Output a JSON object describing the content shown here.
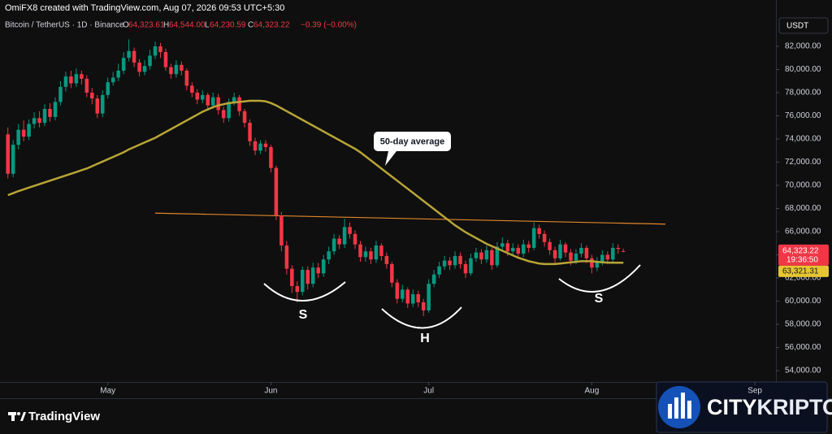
{
  "header": {
    "credit": "OmiFX8 created with TradingView.com, Aug 07, 2026 09:53 UTC+5:30",
    "symbol": "Bitcoin / TetherUS · 1D · Binance",
    "ohlc": [
      {
        "letter": "O",
        "value": "64,323.61"
      },
      {
        "letter": "H",
        "value": "64,544.00"
      },
      {
        "letter": "L",
        "value": "64,230.59"
      },
      {
        "letter": "C",
        "value": "64,323.22"
      }
    ],
    "change": "−0.39 (−0.00%)"
  },
  "logo": "TradingView",
  "badge": {
    "left": "CITY",
    "right": "KRIPTO"
  },
  "chart_data": {
    "type": "candlestick",
    "currency": "USDT",
    "up_color": "#089981",
    "down_color": "#f23645",
    "open": [
      74400,
      71000,
      73500,
      74800,
      74200,
      75300,
      75800,
      75400,
      76600,
      75900,
      77200,
      78500,
      79400,
      78800,
      79600,
      79200,
      78000,
      77500,
      76200,
      77800,
      78900,
      79300,
      79900,
      81000,
      81600,
      80600,
      79800,
      80300,
      81200,
      82000,
      81500,
      80200,
      79600,
      80400,
      79900,
      78600,
      78000,
      77400,
      77800,
      76900,
      77600,
      76500,
      75800,
      77200,
      77600,
      76400,
      75400,
      73800,
      73000,
      73600,
      73300,
      71500,
      67400,
      64800,
      62800,
      61300,
      60800,
      62700,
      61500,
      62900,
      62400,
      63600,
      64300,
      65400,
      64900,
      66400,
      65800,
      64900,
      63800,
      64300,
      63600,
      64800,
      63900,
      63200,
      61600,
      60200,
      61000,
      59800,
      60600,
      59900,
      59200,
      61500,
      62300,
      63000,
      63500,
      63100,
      63900,
      63200,
      62400,
      63700,
      64200,
      63600,
      64400,
      63100,
      64700,
      65000,
      64300,
      64600,
      64100,
      64900,
      64600,
      66300,
      65800,
      65100,
      64400,
      63700,
      64900,
      64200,
      63500,
      64100,
      64600,
      63700,
      62900,
      63400,
      64000,
      63600,
      64600,
      64323.61
    ],
    "high": [
      75000,
      73900,
      75300,
      75600,
      75700,
      76300,
      76400,
      77000,
      77100,
      77600,
      79000,
      79800,
      79900,
      80100,
      79900,
      79500,
      78400,
      77800,
      78200,
      79300,
      79800,
      80500,
      81500,
      82600,
      81900,
      80900,
      80800,
      81700,
      82400,
      82300,
      81800,
      80500,
      80800,
      80700,
      80100,
      78900,
      78300,
      78200,
      78000,
      78000,
      77900,
      76800,
      77500,
      78000,
      77800,
      76600,
      75700,
      74100,
      73900,
      73900,
      73500,
      71700,
      67700,
      65200,
      63100,
      61700,
      63000,
      63000,
      63300,
      63300,
      64000,
      64700,
      65800,
      65700,
      67100,
      66800,
      66100,
      65200,
      64700,
      64600,
      65200,
      65000,
      64200,
      63400,
      61900,
      61400,
      61200,
      61000,
      60900,
      60200,
      61900,
      62700,
      63400,
      63900,
      63800,
      64300,
      64200,
      63500,
      64100,
      64600,
      64500,
      64800,
      64600,
      65100,
      65500,
      65300,
      65000,
      64900,
      65300,
      65200,
      66800,
      66600,
      66100,
      65400,
      64700,
      65300,
      65100,
      64500,
      64500,
      65000,
      64800,
      64000,
      63800,
      64400,
      64300,
      65000,
      64900,
      64544
    ],
    "low": [
      70600,
      70700,
      73100,
      73800,
      73900,
      74900,
      75000,
      75100,
      75500,
      75600,
      76900,
      78100,
      78400,
      78500,
      78700,
      77600,
      77000,
      75800,
      75900,
      77500,
      78600,
      79000,
      79600,
      80700,
      80200,
      79400,
      79500,
      80000,
      80900,
      81000,
      79900,
      79200,
      79300,
      79500,
      78200,
      77600,
      77000,
      77100,
      76500,
      76600,
      76100,
      75400,
      75500,
      76900,
      76000,
      75000,
      73400,
      72600,
      72700,
      72900,
      71100,
      67000,
      64300,
      62300,
      60700,
      59900,
      60500,
      61000,
      61200,
      62000,
      62100,
      63200,
      64000,
      64500,
      64600,
      65400,
      64500,
      63400,
      63400,
      63200,
      63300,
      63500,
      62800,
      61200,
      59800,
      59900,
      59400,
      59500,
      59500,
      58700,
      59000,
      61200,
      62000,
      62700,
      62700,
      62800,
      62800,
      62000,
      62200,
      63400,
      63200,
      63300,
      62700,
      62900,
      64400,
      63900,
      64000,
      63700,
      63800,
      64200,
      64400,
      65400,
      64700,
      64000,
      63300,
      63500,
      63800,
      63100,
      63200,
      63800,
      63300,
      62400,
      62600,
      63100,
      63200,
      63400,
      64100,
      64230.59
    ],
    "close": [
      71000,
      73500,
      74800,
      74200,
      75300,
      75800,
      75400,
      76600,
      75900,
      77200,
      78500,
      79400,
      78800,
      79600,
      79200,
      78000,
      77500,
      76200,
      77800,
      78900,
      79300,
      79900,
      81000,
      81600,
      80600,
      79800,
      80300,
      81200,
      82000,
      81500,
      80200,
      79600,
      80400,
      79900,
      78600,
      78000,
      77400,
      77800,
      76900,
      77600,
      76500,
      75800,
      77200,
      77600,
      76400,
      75400,
      73800,
      73000,
      73600,
      73300,
      71500,
      67400,
      64800,
      62800,
      61300,
      60800,
      62700,
      61500,
      62900,
      62400,
      63600,
      64300,
      65400,
      64900,
      66400,
      65800,
      64900,
      63800,
      64300,
      63600,
      64800,
      63900,
      63200,
      61600,
      60200,
      61000,
      59800,
      60600,
      59900,
      59200,
      61500,
      62300,
      63000,
      63500,
      63100,
      63900,
      63200,
      62400,
      63700,
      64200,
      63600,
      64400,
      63100,
      64700,
      65000,
      64300,
      64600,
      64100,
      64900,
      64600,
      66300,
      65800,
      65100,
      64400,
      63700,
      64900,
      64200,
      63500,
      64100,
      64600,
      63700,
      62900,
      63400,
      64000,
      63600,
      64600,
      64500,
      64323.22
    ],
    "moving_average": {
      "name": "50-day average",
      "color": "#b8a536",
      "values": [
        69150,
        69320,
        69500,
        69650,
        69800,
        69950,
        70100,
        70250,
        70400,
        70550,
        70700,
        70850,
        71000,
        71150,
        71300,
        71450,
        71650,
        71850,
        72050,
        72250,
        72450,
        72650,
        72850,
        73100,
        73300,
        73500,
        73700,
        73900,
        74100,
        74350,
        74600,
        74850,
        75100,
        75350,
        75600,
        75850,
        76100,
        76350,
        76550,
        76750,
        76900,
        77000,
        77100,
        77150,
        77200,
        77250,
        77300,
        77300,
        77300,
        77250,
        77100,
        76900,
        76650,
        76400,
        76150,
        75900,
        75650,
        75400,
        75150,
        74900,
        74650,
        74400,
        74150,
        73900,
        73650,
        73400,
        73150,
        72850,
        72500,
        72150,
        71800,
        71450,
        71100,
        70750,
        70400,
        70050,
        69700,
        69350,
        69000,
        68650,
        68300,
        67950,
        67600,
        67250,
        66900,
        66550,
        66250,
        65950,
        65700,
        65450,
        65200,
        64950,
        64750,
        64550,
        64350,
        64150,
        63950,
        63750,
        63600,
        63450,
        63350,
        63250,
        63200,
        63200,
        63200,
        63250,
        63300,
        63350,
        63400,
        63450,
        63450,
        63450,
        63400,
        63350,
        63330,
        63320,
        63320,
        63321.31
      ],
      "value_label": "63,321.31"
    },
    "trendline": {
      "color": "#e0862a",
      "x": [
        28,
        125
      ],
      "values": [
        67600,
        66650
      ]
    },
    "last_price_label": "64,323.22",
    "countdown": "19:36:50",
    "pattern_labels": [
      "S",
      "H",
      "S"
    ],
    "xlim": [
      -1.5,
      146
    ],
    "xticks": [
      {
        "value": 19,
        "label": "May"
      },
      {
        "value": 50,
        "label": "Jun"
      },
      {
        "value": 80,
        "label": "Jul"
      },
      {
        "value": 111,
        "label": "Aug"
      },
      {
        "value": 142,
        "label": "Sep"
      }
    ],
    "ylim": [
      53020,
      86000
    ],
    "yticks": [
      {
        "value": 54000,
        "label": "54,000.00"
      },
      {
        "value": 56000,
        "label": "56,000.00"
      },
      {
        "value": 58000,
        "label": "58,000.00"
      },
      {
        "value": 60000,
        "label": "60,000.00"
      },
      {
        "value": 62000,
        "label": "62,000.00"
      },
      {
        "value": 64000,
        "label": "64,000.00"
      },
      {
        "value": 66000,
        "label": "66,000.00"
      },
      {
        "value": 68000,
        "label": "68,000.00"
      },
      {
        "value": 70000,
        "label": "70,000.00"
      },
      {
        "value": 72000,
        "label": "72,000.00"
      },
      {
        "value": 74000,
        "label": "74,000.00"
      },
      {
        "value": 76000,
        "label": "76,000.00"
      },
      {
        "value": 78000,
        "label": "78,000.00"
      },
      {
        "value": 80000,
        "label": "80,000.00"
      },
      {
        "value": 82000,
        "label": "82,000.00"
      }
    ]
  }
}
